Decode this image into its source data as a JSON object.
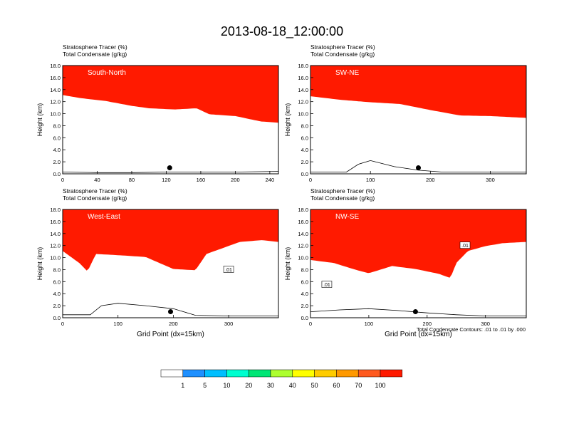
{
  "figure": {
    "title": "2013-08-18_12:00:00",
    "footnote": "Total Condensate Contours: .01 to .01 by .000",
    "colorbar": {
      "colors": [
        "#ffffff",
        "#1e90ff",
        "#00bfff",
        "#00ffd0",
        "#00e676",
        "#adff2f",
        "#ffff00",
        "#ffcc00",
        "#ff9900",
        "#ff5a1f",
        "#ff1a00"
      ],
      "labels": [
        "1",
        "5",
        "10",
        "20",
        "30",
        "40",
        "50",
        "60",
        "70",
        "100"
      ]
    }
  },
  "chart_data": [
    {
      "type": "heatmap",
      "label": "South-North",
      "line1": "Stratosphere Tracer   (%)",
      "line2": "Total Condensate   (g/kg)",
      "ylabel": "Height (km)",
      "xlabel": "",
      "xlim": [
        0,
        250
      ],
      "ylim": [
        0,
        18
      ],
      "xticks": [
        "0",
        "40",
        "80",
        "120",
        "160",
        "200",
        "240"
      ],
      "yticks": [
        "0.0",
        "2.0",
        "4.0",
        "6.0",
        "8.0",
        "10.0",
        "12.0",
        "14.0",
        "16.0",
        "18.0"
      ],
      "tropopause_x": [
        0,
        20,
        50,
        80,
        100,
        130,
        155,
        170,
        200,
        230,
        250
      ],
      "tropopause_km": [
        15.0,
        14.5,
        14.0,
        13.2,
        12.8,
        12.6,
        12.8,
        11.8,
        11.5,
        10.6,
        10.4
      ],
      "marker": {
        "x": 124,
        "y_km": 1.0
      },
      "terrain_x": [
        0,
        40,
        80,
        120,
        160,
        200,
        250
      ],
      "terrain_km": [
        0.3,
        0.2,
        0.2,
        0.3,
        0.3,
        0.3,
        0.4
      ],
      "contour_labels": []
    },
    {
      "type": "heatmap",
      "label": "SW-NE",
      "line1": "Stratosphere Tracer   (%)",
      "line2": "Total Condensate   (g/kg)",
      "ylabel": "Height (km)",
      "xlabel": "",
      "xlim": [
        0,
        360
      ],
      "ylim": [
        0,
        18
      ],
      "xticks": [
        "0",
        "100",
        "200",
        "300"
      ],
      "yticks": [
        "0.0",
        "2.0",
        "4.0",
        "6.0",
        "8.0",
        "10.0",
        "12.0",
        "14.0",
        "16.0",
        "18.0"
      ],
      "tropopause_x": [
        0,
        50,
        100,
        150,
        200,
        250,
        300,
        360
      ],
      "tropopause_km": [
        14.8,
        14.2,
        13.8,
        13.5,
        12.5,
        11.6,
        11.5,
        11.2
      ],
      "marker": {
        "x": 180,
        "y_km": 1.0
      },
      "terrain_x": [
        0,
        60,
        80,
        100,
        140,
        180,
        220,
        360
      ],
      "terrain_km": [
        0.3,
        0.3,
        1.6,
        2.2,
        1.2,
        0.6,
        0.3,
        0.3
      ],
      "contour_labels": []
    },
    {
      "type": "heatmap",
      "label": "West-East",
      "line1": "Stratosphere Tracer   (%)",
      "line2": "Total Condensate   (g/kg)",
      "ylabel": "Height (km)",
      "xlabel": "Grid Point (dx=15km)",
      "xlim": [
        0,
        390
      ],
      "ylim": [
        0,
        18
      ],
      "xticks": [
        "0",
        "100",
        "200",
        "300"
      ],
      "yticks": [
        "0.0",
        "2.0",
        "4.0",
        "6.0",
        "8.0",
        "10.0",
        "12.0",
        "14.0",
        "16.0",
        "18.0"
      ],
      "tropopause_x": [
        0,
        30,
        45,
        60,
        100,
        150,
        200,
        240,
        260,
        290,
        320,
        360,
        390
      ],
      "tropopause_km": [
        13.0,
        11.0,
        9.6,
        12.5,
        12.3,
        12.0,
        10.0,
        9.8,
        12.5,
        13.5,
        14.5,
        14.8,
        14.5
      ],
      "marker": {
        "x": 195,
        "y_km": 1.0
      },
      "terrain_x": [
        0,
        50,
        70,
        100,
        150,
        200,
        240,
        300,
        390
      ],
      "terrain_km": [
        0.5,
        0.5,
        2.0,
        2.4,
        2.0,
        1.5,
        0.4,
        0.3,
        0.3
      ],
      "contour_labels": [
        {
          "text": ".01",
          "x": 300,
          "y_km": 8.0
        }
      ]
    },
    {
      "type": "heatmap",
      "label": "NW-SE",
      "line1": "Stratosphere Tracer   (%)",
      "line2": "Total Condensate   (g/kg)",
      "ylabel": "Height (km)",
      "xlabel": "Grid Point (dx=15km)",
      "xlim": [
        0,
        370
      ],
      "ylim": [
        0,
        18
      ],
      "xticks": [
        "0",
        "100",
        "200",
        "300"
      ],
      "yticks": [
        "0.0",
        "2.0",
        "4.0",
        "6.0",
        "8.0",
        "10.0",
        "12.0",
        "14.0",
        "16.0",
        "18.0"
      ],
      "tropopause_x": [
        0,
        40,
        80,
        100,
        140,
        180,
        220,
        240,
        250,
        270,
        300,
        330,
        370
      ],
      "tropopause_km": [
        11.5,
        11.0,
        9.8,
        9.3,
        10.5,
        10.0,
        9.2,
        8.5,
        11.0,
        13.0,
        13.8,
        14.3,
        14.5
      ],
      "marker": {
        "x": 180,
        "y_km": 1.0
      },
      "terrain_x": [
        0,
        50,
        100,
        150,
        200,
        250,
        300,
        370
      ],
      "terrain_km": [
        1.0,
        1.3,
        1.5,
        1.2,
        0.8,
        0.5,
        0.3,
        0.3
      ],
      "contour_labels": [
        {
          "text": ".01",
          "x": 28,
          "y_km": 5.5
        },
        {
          "text": ".01",
          "x": 265,
          "y_km": 12.0
        }
      ]
    }
  ]
}
